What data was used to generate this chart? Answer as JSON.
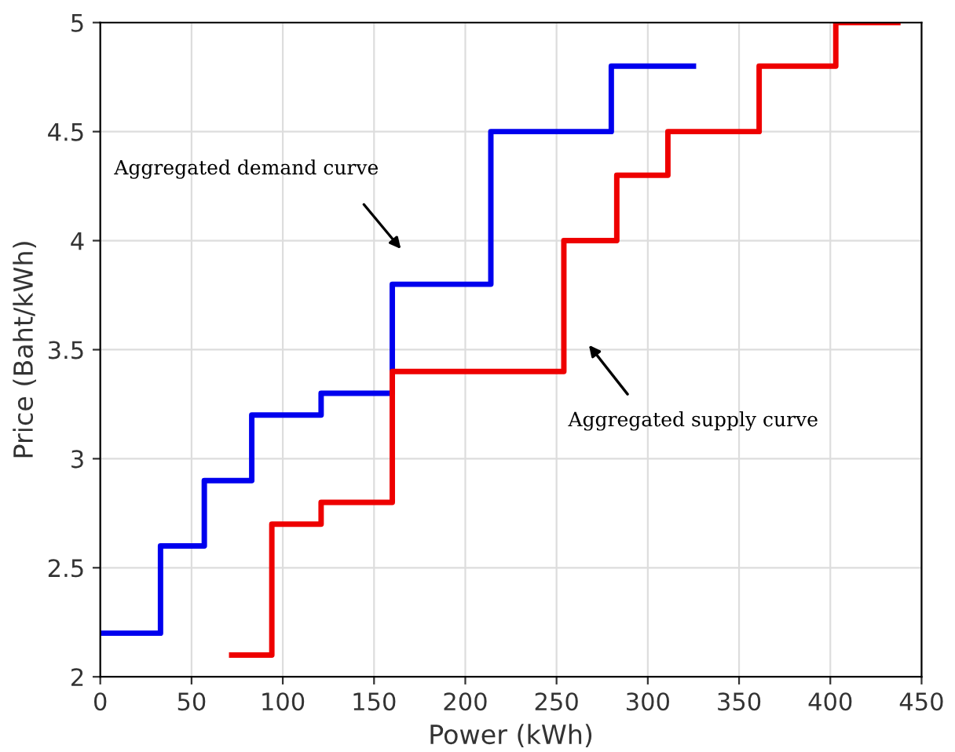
{
  "chart_data": {
    "type": "step",
    "xlabel": "Power (kWh)",
    "ylabel": "Price (Baht/kWh)",
    "series": [
      {
        "color": "#0000ee",
        "x": [
          0,
          33,
          57,
          83,
          121,
          160,
          214,
          280,
          325
        ],
        "values": [
          2.2,
          2.6,
          2.9,
          3.2,
          3.3,
          3.8,
          4.5,
          4.8,
          4.8
        ]
      },
      {
        "color": "#ee0000",
        "x": [
          72,
          94,
          121,
          160,
          254,
          283,
          311,
          361,
          403,
          437
        ],
        "values": [
          2.1,
          2.7,
          2.8,
          3.4,
          4.0,
          4.3,
          4.5,
          4.8,
          5.0,
          5.0
        ]
      }
    ],
    "annotations": [
      "Aggregated demand curve",
      "Aggregated supply curve"
    ],
    "xlim": [
      0,
      450
    ],
    "ylim": [
      2,
      5
    ],
    "xticks": [
      0,
      50,
      100,
      150,
      200,
      250,
      300,
      350,
      400,
      450
    ],
    "yticks": [
      2,
      2.5,
      3,
      3.5,
      4,
      4.5,
      5
    ],
    "grid": true
  }
}
